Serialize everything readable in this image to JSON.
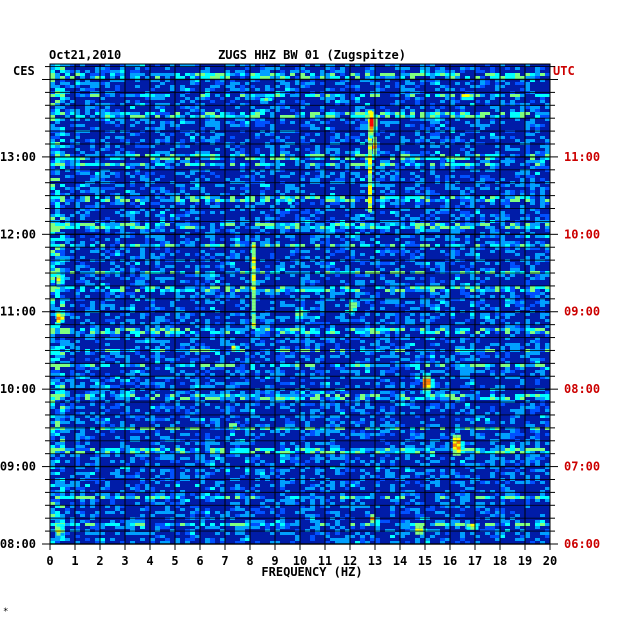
{
  "chart_data": {
    "type": "heatmap",
    "date": "Oct21,2010",
    "title": "ZUGS HHZ BW 01 (Zugspitze)",
    "left_zone": "CES",
    "right_zone": "UTC",
    "xlabel": "FREQUENCY (HZ)",
    "xlim": [
      0,
      20
    ],
    "x_ticks": [
      "0",
      "1",
      "2",
      "3",
      "4",
      "5",
      "6",
      "7",
      "8",
      "9",
      "10",
      "11",
      "12",
      "13",
      "14",
      "15",
      "16",
      "17",
      "18",
      "19",
      "20"
    ],
    "left_time_ticks": [
      {
        "label": "08:00",
        "hours_from_bottom": 0
      },
      {
        "label": "09:00",
        "hours_from_bottom": 1
      },
      {
        "label": "10:00",
        "hours_from_bottom": 2
      },
      {
        "label": "11:00",
        "hours_from_bottom": 3
      },
      {
        "label": "12:00",
        "hours_from_bottom": 4
      },
      {
        "label": "13:00",
        "hours_from_bottom": 5
      }
    ],
    "right_time_ticks": [
      {
        "label": "06:00",
        "hours_from_bottom": 0
      },
      {
        "label": "07:00",
        "hours_from_bottom": 1
      },
      {
        "label": "08:00",
        "hours_from_bottom": 2
      },
      {
        "label": "09:00",
        "hours_from_bottom": 3
      },
      {
        "label": "10:00",
        "hours_from_bottom": 4
      },
      {
        "label": "11:00",
        "hours_from_bottom": 5
      }
    ],
    "time_span_hours": 6.2,
    "minor_ticks_per_hour": 6,
    "background_color": "#001ca8",
    "colormap": [
      "#000080",
      "#0020c0",
      "#0050ff",
      "#00a0ff",
      "#00ffff",
      "#80ff80",
      "#ffff00",
      "#ff8000",
      "#ff0000"
    ],
    "hotspots": [
      {
        "freq": 12.8,
        "hours_from_bottom": 5.45,
        "freq_width": 0.35,
        "hours_width": 0.35,
        "level": 0.95
      },
      {
        "freq": 12.9,
        "hours_from_bottom": 5.15,
        "freq_width": 0.3,
        "hours_width": 0.3,
        "level": 0.75
      },
      {
        "freq": 0.3,
        "hours_from_bottom": 2.95,
        "freq_width": 0.4,
        "hours_width": 0.2,
        "level": 0.8
      },
      {
        "freq": 0.3,
        "hours_from_bottom": 3.45,
        "freq_width": 0.4,
        "hours_width": 0.2,
        "level": 0.7
      },
      {
        "freq": 0.3,
        "hours_from_bottom": 0.2,
        "freq_width": 0.4,
        "hours_width": 0.2,
        "level": 0.7
      },
      {
        "freq": 15.0,
        "hours_from_bottom": 2.1,
        "freq_width": 0.5,
        "hours_width": 0.3,
        "level": 0.9
      },
      {
        "freq": 16.2,
        "hours_from_bottom": 1.3,
        "freq_width": 0.5,
        "hours_width": 0.3,
        "level": 0.9
      },
      {
        "freq": 16.6,
        "hours_from_bottom": 5.8,
        "freq_width": 0.6,
        "hours_width": 0.1,
        "level": 0.75
      },
      {
        "freq": 9.9,
        "hours_from_bottom": 3.0,
        "freq_width": 0.5,
        "hours_width": 0.2,
        "level": 0.7
      },
      {
        "freq": 12.0,
        "hours_from_bottom": 3.1,
        "freq_width": 0.4,
        "hours_width": 0.2,
        "level": 0.7
      },
      {
        "freq": 12.8,
        "hours_from_bottom": 0.35,
        "freq_width": 0.3,
        "hours_width": 0.15,
        "level": 0.75
      },
      {
        "freq": 14.7,
        "hours_from_bottom": 0.2,
        "freq_width": 0.5,
        "hours_width": 0.15,
        "level": 0.75
      },
      {
        "freq": 7.2,
        "hours_from_bottom": 1.55,
        "freq_width": 0.4,
        "hours_width": 0.1,
        "level": 0.7
      },
      {
        "freq": 7.3,
        "hours_from_bottom": 2.55,
        "freq_width": 0.4,
        "hours_width": 0.1,
        "level": 0.75
      },
      {
        "freq": 8.5,
        "hours_from_bottom": 5.75,
        "freq_width": 0.5,
        "hours_width": 0.1,
        "level": 0.65
      },
      {
        "freq": 9.5,
        "hours_from_bottom": 4.45,
        "freq_width": 0.3,
        "hours_width": 0.1,
        "level": 0.65
      },
      {
        "freq": 15.9,
        "hours_from_bottom": 5.0,
        "freq_width": 0.4,
        "hours_width": 0.1,
        "level": 0.7
      },
      {
        "freq": 16.8,
        "hours_from_bottom": 0.25,
        "freq_width": 0.6,
        "hours_width": 0.1,
        "level": 0.7
      }
    ],
    "vertical_streaks": [
      {
        "freq": 8.15,
        "from_hours": 2.8,
        "to_hours": 3.9,
        "level": 0.55
      },
      {
        "freq": 12.8,
        "from_hours": 4.3,
        "to_hours": 5.6,
        "level": 0.6
      }
    ],
    "bright_rows_hours": [
      0.25,
      0.6,
      1.2,
      1.5,
      1.9,
      2.3,
      2.5,
      2.75,
      3.3,
      3.5,
      3.85,
      4.1,
      4.45,
      4.9,
      5.0,
      5.55,
      5.8,
      6.05
    ]
  },
  "footer_mark": "*"
}
